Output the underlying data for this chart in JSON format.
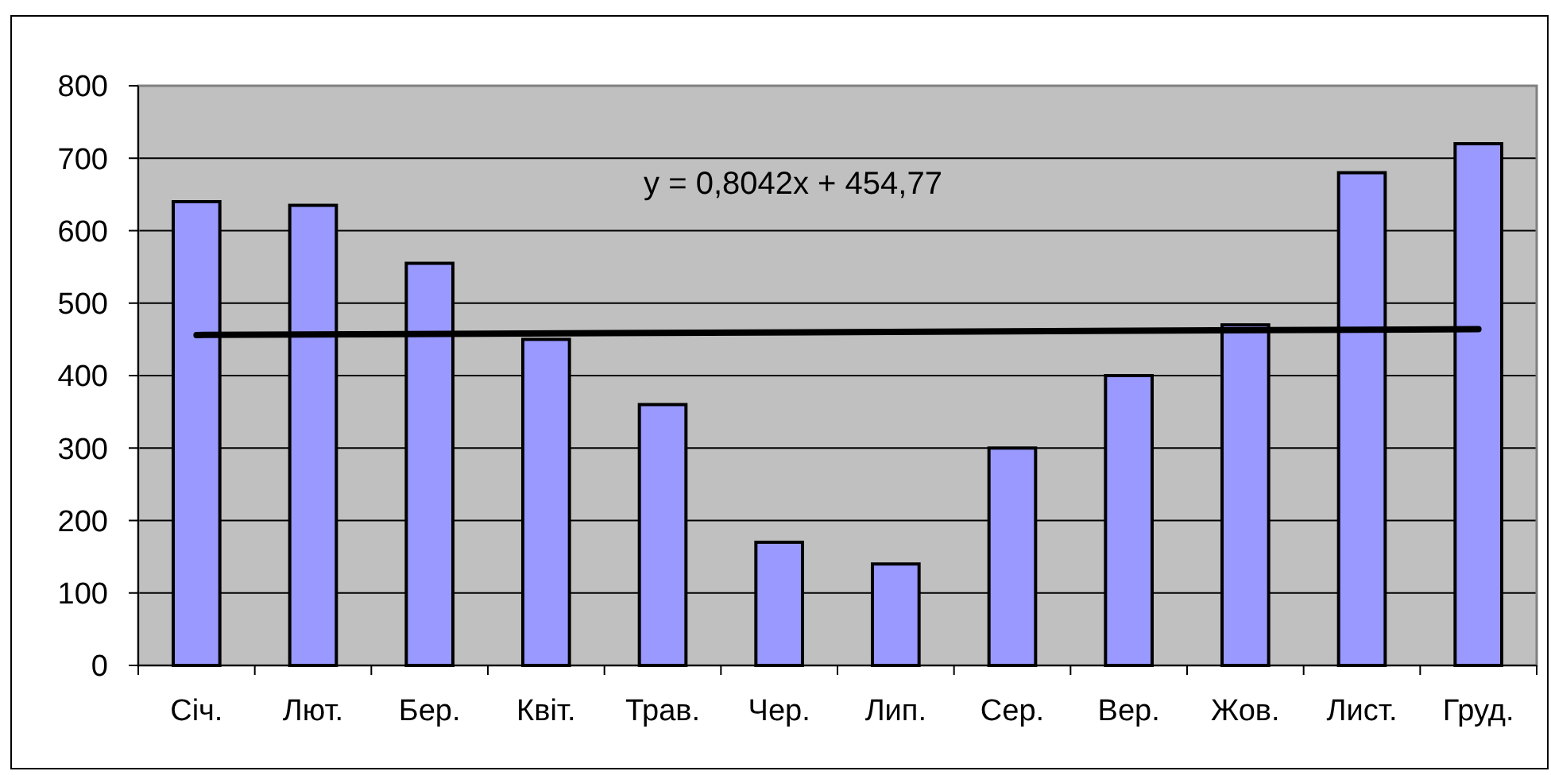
{
  "chart_data": {
    "type": "bar",
    "categories": [
      "Січ.",
      "Лют.",
      "Бер.",
      "Квіт.",
      "Трав.",
      "Чер.",
      "Лип.",
      "Сер.",
      "Вер.",
      "Жов.",
      "Лист.",
      "Груд."
    ],
    "series": [
      {
        "color": "#9999ff",
        "values": [
          640,
          635,
          555,
          450,
          360,
          170,
          140,
          300,
          400,
          470,
          680,
          720
        ]
      },
      {
        "type": "line",
        "color": "#000000",
        "x": [
          "Січ.",
          "Груд."
        ],
        "values": [
          456,
          464
        ]
      }
    ],
    "ylim": [
      0,
      800
    ],
    "yticks": [
      0,
      100,
      200,
      300,
      400,
      500,
      600,
      700,
      800
    ],
    "grid": "y",
    "annotations": [
      "y = 0,8042x + 454,77"
    ]
  }
}
